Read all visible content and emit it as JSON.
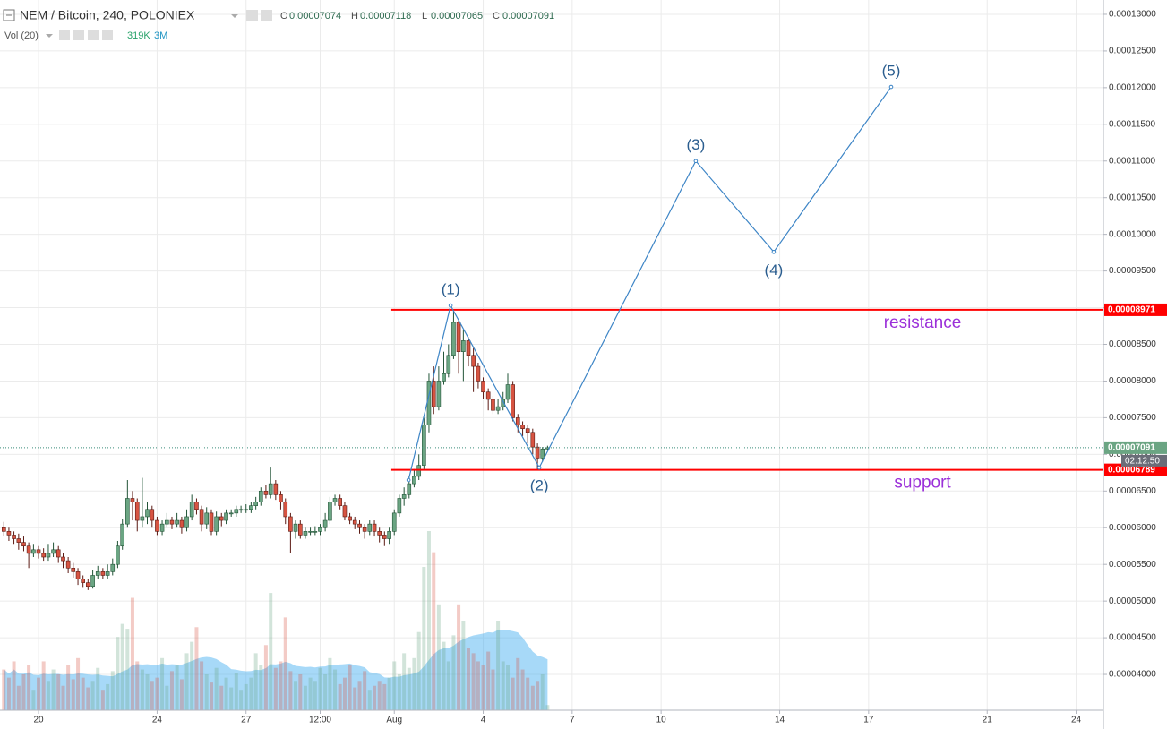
{
  "chart_data": {
    "type": "candlestick",
    "title": "NEM / Bitcoin, 240, POLONIEX",
    "ohlc_labels": [
      "O",
      "H",
      "L",
      "C"
    ],
    "volume_legend": {
      "name": "Vol (20)",
      "value_label": "319K",
      "ma_label": "3M"
    },
    "countdown": "02:12:50",
    "x": [
      18.83,
      19,
      19.17,
      19.33,
      19.5,
      19.67,
      19.83,
      20,
      20.17,
      20.33,
      20.5,
      20.67,
      20.83,
      21,
      21.17,
      21.33,
      21.5,
      21.67,
      21.83,
      22,
      22.17,
      22.33,
      22.5,
      22.67,
      22.83,
      23,
      23.17,
      23.33,
      23.5,
      23.67,
      23.83,
      24,
      24.17,
      24.33,
      24.5,
      24.67,
      24.83,
      25,
      25.17,
      25.33,
      25.5,
      25.67,
      25.83,
      26,
      26.17,
      26.33,
      26.5,
      26.67,
      26.83,
      27,
      27.17,
      27.33,
      27.5,
      27.67,
      27.83,
      28,
      28.17,
      28.33,
      28.5,
      28.67,
      28.83,
      29,
      29.17,
      29.33,
      29.5,
      29.67,
      29.83,
      30,
      30.17,
      30.33,
      30.5,
      30.67,
      30.83,
      31,
      31.17,
      31.33,
      31.5,
      31.67,
      31.83,
      32,
      32.17,
      32.33,
      32.5,
      32.67,
      32.83,
      33,
      33.17,
      33.33,
      33.5,
      33.67,
      33.83,
      34,
      34.17,
      34.33,
      34.5,
      34.67,
      34.83,
      35,
      35.17,
      35.33,
      35.5,
      35.67,
      35.83,
      36,
      36.17,
      36.33,
      36.5,
      36.67,
      36.83,
      37,
      37.17
    ],
    "open": [
      6e-05,
      5.95e-05,
      5.9e-05,
      5.85e-05,
      5.8e-05,
      5.75e-05,
      5.65e-05,
      5.7e-05,
      5.65e-05,
      5.6e-05,
      5.65e-05,
      5.7e-05,
      5.6e-05,
      5.55e-05,
      5.45e-05,
      5.4e-05,
      5.3e-05,
      5.25e-05,
      5.2e-05,
      5.35e-05,
      5.4e-05,
      5.35e-05,
      5.4e-05,
      5.5e-05,
      5.75e-05,
      6.05e-05,
      6.4e-05,
      6.35e-05,
      6.1e-05,
      6.15e-05,
      6.25e-05,
      6.1e-05,
      5.95e-05,
      6.05e-05,
      6.1e-05,
      6.05e-05,
      6.1e-05,
      6e-05,
      6.15e-05,
      6.35e-05,
      6.25e-05,
      6.05e-05,
      6.2e-05,
      5.95e-05,
      6.15e-05,
      6.1e-05,
      6.2e-05,
      6.2e-05,
      6.25e-05,
      6.25e-05,
      6.25e-05,
      6.3e-05,
      6.35e-05,
      6.5e-05,
      6.45e-05,
      6.6e-05,
      6.45e-05,
      6.35e-05,
      6.15e-05,
      5.95e-05,
      6.05e-05,
      5.9e-05,
      5.95e-05,
      5.95e-05,
      5.95e-05,
      6e-05,
      6.1e-05,
      6.35e-05,
      6.4e-05,
      6.3e-05,
      6.15e-05,
      6.1e-05,
      6.05e-05,
      6e-05,
      5.95e-05,
      6.05e-05,
      5.95e-05,
      5.9e-05,
      5.85e-05,
      5.95e-05,
      6.2e-05,
      6.4e-05,
      6.45e-05,
      6.6e-05,
      6.7e-05,
      6.85e-05,
      7.4e-05,
      8e-05,
      7.65e-05,
      8e-05,
      8.1e-05,
      8.35e-05,
      8.8e-05,
      8.4e-05,
      8.55e-05,
      8.35e-05,
      8.2e-05,
      8e-05,
      7.85e-05,
      7.75e-05,
      7.6e-05,
      7.65e-05,
      7.75e-05,
      7.95e-05,
      7.5e-05,
      7.4e-05,
      7.35e-05,
      7.3e-05,
      7.1e-05,
      6.95e-05,
      7.074e-05
    ],
    "high": [
      6.08e-05,
      6e-05,
      5.95e-05,
      5.92e-05,
      5.88e-05,
      5.8e-05,
      5.78e-05,
      5.75e-05,
      5.72e-05,
      5.78e-05,
      5.8e-05,
      5.75e-05,
      5.65e-05,
      5.6e-05,
      5.52e-05,
      5.45e-05,
      5.35e-05,
      5.3e-05,
      5.42e-05,
      5.48e-05,
      5.45e-05,
      5.5e-05,
      5.58e-05,
      5.82e-05,
      6.12e-05,
      6.65e-05,
      6.5e-05,
      6.4e-05,
      6.68e-05,
      6.35e-05,
      6.3e-05,
      6.15e-05,
      6.1e-05,
      6.2e-05,
      6.15e-05,
      6.2e-05,
      6.15e-05,
      6.25e-05,
      6.45e-05,
      6.4e-05,
      6.3e-05,
      6.28e-05,
      6.25e-05,
      6.22e-05,
      6.2e-05,
      6.25e-05,
      6.25e-05,
      6.3e-05,
      6.3e-05,
      6.32e-05,
      6.35e-05,
      6.42e-05,
      6.55e-05,
      6.58e-05,
      6.82e-05,
      6.65e-05,
      6.5e-05,
      6.4e-05,
      6.2e-05,
      6.1e-05,
      6.1e-05,
      6e-05,
      6e-05,
      6.02e-05,
      6.05e-05,
      6.2e-05,
      6.42e-05,
      6.45e-05,
      6.45e-05,
      6.35e-05,
      6.2e-05,
      6.15e-05,
      6.1e-05,
      6.05e-05,
      6.1e-05,
      6.1e-05,
      6e-05,
      5.95e-05,
      6e-05,
      6.25e-05,
      6.45e-05,
      6.55e-05,
      6.7e-05,
      6.8e-05,
      7e-05,
      7.5e-05,
      8.1e-05,
      8.2e-05,
      8.2e-05,
      8.4e-05,
      8.5e-05,
      8.971e-05,
      8.85e-05,
      8.7e-05,
      8.6e-05,
      8.45e-05,
      8.25e-05,
      8.05e-05,
      7.9e-05,
      7.8e-05,
      7.75e-05,
      7.85e-05,
      8.1e-05,
      8e-05,
      7.55e-05,
      7.45e-05,
      7.4e-05,
      7.35e-05,
      7.15e-05,
      7.1e-05,
      7.118e-05
    ],
    "low": [
      5.88e-05,
      5.82e-05,
      5.78e-05,
      5.7e-05,
      5.68e-05,
      5.45e-05,
      5.6e-05,
      5.58e-05,
      5.55e-05,
      5.55e-05,
      5.6e-05,
      5.52e-05,
      5.45e-05,
      5.38e-05,
      5.32e-05,
      5.22e-05,
      5.18e-05,
      5.15e-05,
      5.17e-05,
      5.3e-05,
      5.3e-05,
      5.3e-05,
      5.35e-05,
      5.45e-05,
      5.7e-05,
      6e-05,
      6.1e-05,
      5.95e-05,
      6e-05,
      6.05e-05,
      6e-05,
      5.9e-05,
      5.9e-05,
      6e-05,
      5.98e-05,
      6e-05,
      5.92e-05,
      5.95e-05,
      6.1e-05,
      6.18e-05,
      5.95e-05,
      5.98e-05,
      5.9e-05,
      5.9e-05,
      6.02e-05,
      6.05e-05,
      6.15e-05,
      6.15e-05,
      6.2e-05,
      6.2e-05,
      6.2e-05,
      6.25e-05,
      6.3e-05,
      6.4e-05,
      6.4e-05,
      6.38e-05,
      6.25e-05,
      6.05e-05,
      5.65e-05,
      5.85e-05,
      5.85e-05,
      5.85e-05,
      5.9e-05,
      5.9e-05,
      5.9e-05,
      5.95e-05,
      6.05e-05,
      6.3e-05,
      6.25e-05,
      6.1e-05,
      6.05e-05,
      5.98e-05,
      5.92e-05,
      5.85e-05,
      5.9e-05,
      5.88e-05,
      5.8e-05,
      5.75e-05,
      5.78e-05,
      5.9e-05,
      6.15e-05,
      6.3e-05,
      6.4e-05,
      6.55e-05,
      6.65e-05,
      6.8e-05,
      7.3e-05,
      7.55e-05,
      7.6e-05,
      7.95e-05,
      8.05e-05,
      8.3e-05,
      8.1e-05,
      8e-05,
      8.2e-05,
      7.85e-05,
      7.9e-05,
      7.75e-05,
      7.6e-05,
      7.55e-05,
      7.55e-05,
      7.6e-05,
      7.7e-05,
      7.45e-05,
      7.3e-05,
      7.25e-05,
      7.15e-05,
      7e-05,
      6.789e-05,
      6.9e-05,
      7.065e-05
    ],
    "close": [
      5.95e-05,
      5.9e-05,
      5.85e-05,
      5.8e-05,
      5.75e-05,
      5.65e-05,
      5.7e-05,
      5.65e-05,
      5.6e-05,
      5.65e-05,
      5.7e-05,
      5.6e-05,
      5.55e-05,
      5.45e-05,
      5.4e-05,
      5.3e-05,
      5.25e-05,
      5.2e-05,
      5.35e-05,
      5.4e-05,
      5.35e-05,
      5.4e-05,
      5.5e-05,
      5.75e-05,
      6.05e-05,
      6.4e-05,
      6.35e-05,
      6.1e-05,
      6.15e-05,
      6.25e-05,
      6.1e-05,
      5.95e-05,
      6.05e-05,
      6.1e-05,
      6.05e-05,
      6.1e-05,
      6e-05,
      6.15e-05,
      6.35e-05,
      6.25e-05,
      6.05e-05,
      6.2e-05,
      5.95e-05,
      6.15e-05,
      6.1e-05,
      6.2e-05,
      6.2e-05,
      6.25e-05,
      6.25e-05,
      6.25e-05,
      6.3e-05,
      6.35e-05,
      6.5e-05,
      6.45e-05,
      6.6e-05,
      6.45e-05,
      6.35e-05,
      6.15e-05,
      5.95e-05,
      6.05e-05,
      5.9e-05,
      5.95e-05,
      5.95e-05,
      5.95e-05,
      6e-05,
      6.1e-05,
      6.35e-05,
      6.4e-05,
      6.3e-05,
      6.15e-05,
      6.1e-05,
      6.05e-05,
      6e-05,
      5.95e-05,
      6.05e-05,
      5.95e-05,
      5.9e-05,
      5.85e-05,
      5.95e-05,
      6.2e-05,
      6.4e-05,
      6.45e-05,
      6.6e-05,
      6.7e-05,
      6.85e-05,
      7.4e-05,
      8e-05,
      7.65e-05,
      8e-05,
      8.1e-05,
      8.35e-05,
      8.8e-05,
      8.4e-05,
      8.55e-05,
      8.35e-05,
      8.2e-05,
      8e-05,
      7.85e-05,
      7.75e-05,
      7.6e-05,
      7.65e-05,
      7.75e-05,
      7.95e-05,
      7.5e-05,
      7.4e-05,
      7.35e-05,
      7.3e-05,
      7.1e-05,
      6.95e-05,
      7.074e-05,
      7.091e-05
    ],
    "volume": [
      2500000.0,
      2000000.0,
      3000000.0,
      1500000.0,
      2200000.0,
      2800000.0,
      1200000.0,
      2000000.0,
      3000000.0,
      1800000.0,
      2500000.0,
      2200000.0,
      1500000.0,
      2800000.0,
      1900000.0,
      3200000.0,
      2000000.0,
      1400000.0,
      1800000.0,
      2600000.0,
      1200000.0,
      1600000.0,
      2400000.0,
      4500000.0,
      5300000.0,
      5000000.0,
      6900000.0,
      3000000.0,
      2500000.0,
      2200000.0,
      1800000.0,
      2000000.0,
      3200000.0,
      1500000.0,
      2400000.0,
      2800000.0,
      1900000.0,
      3500000.0,
      4200000.0,
      5100000.0,
      3000000.0,
      2200000.0,
      1700000.0,
      2600000.0,
      1500000.0,
      2000000.0,
      1400000.0,
      2300000.0,
      1200000.0,
      1600000.0,
      2000000.0,
      3500000.0,
      2800000.0,
      4000000.0,
      7200000.0,
      2600000.0,
      3000000.0,
      5700000.0,
      2400000.0,
      1800000.0,
      2200000.0,
      1500000.0,
      2000000.0,
      1800000.0,
      2600000.0,
      2200000.0,
      3200000.0,
      2500000.0,
      1600000.0,
      2000000.0,
      2800000.0,
      1400000.0,
      1800000.0,
      2400000.0,
      1200000.0,
      1500000.0,
      1800000.0,
      1600000.0,
      2000000.0,
      3000000.0,
      2200000.0,
      3500000.0,
      2600000.0,
      3200000.0,
      4800000.0,
      8800000.0,
      11000000.0,
      9700000.0,
      6500000.0,
      4200000.0,
      3000000.0,
      4600000.0,
      6500000.0,
      5500000.0,
      3800000.0,
      3500000.0,
      3000000.0,
      2800000.0,
      3600000.0,
      2500000.0,
      5500000.0,
      3000000.0,
      2800000.0,
      2000000.0,
      3200000.0,
      2500000.0,
      2000000.0,
      1500000.0,
      1800000.0,
      2200000.0,
      319000
    ],
    "ma_period": 20,
    "xlim": [
      18.7,
      55.92
    ],
    "ylim": [
      3.512e-05,
      0.00013195
    ],
    "xticks": [
      {
        "value": 20,
        "label": "20"
      },
      {
        "value": 24,
        "label": "24"
      },
      {
        "value": 27,
        "label": "27"
      },
      {
        "value": 29.5,
        "label": "12:00"
      },
      {
        "value": 32,
        "label": "Aug"
      },
      {
        "value": 35,
        "label": "4"
      },
      {
        "value": 38,
        "label": "7"
      },
      {
        "value": 41,
        "label": "10"
      },
      {
        "value": 45,
        "label": "14"
      },
      {
        "value": 48,
        "label": "17"
      },
      {
        "value": 52,
        "label": "21"
      },
      {
        "value": 55,
        "label": "24"
      }
    ],
    "yticks": [
      {
        "value": 4e-05,
        "label": "0.00004000"
      },
      {
        "value": 4.5e-05,
        "label": "0.00004500"
      },
      {
        "value": 5e-05,
        "label": "0.00005000"
      },
      {
        "value": 5.5e-05,
        "label": "0.00005500"
      },
      {
        "value": 6e-05,
        "label": "0.00006000"
      },
      {
        "value": 6.5e-05,
        "label": "0.00006500"
      },
      {
        "value": 7e-05,
        "label": "0.00007000"
      },
      {
        "value": 7.5e-05,
        "label": "0.00007500"
      },
      {
        "value": 8e-05,
        "label": "0.00008000"
      },
      {
        "value": 8.5e-05,
        "label": "0.00008500"
      },
      {
        "value": 9e-05,
        "label": "0.00009000"
      },
      {
        "value": 9.5e-05,
        "label": "0.00009500"
      },
      {
        "value": 0.0001,
        "label": "0.00010000"
      },
      {
        "value": 0.000105,
        "label": "0.00010500"
      },
      {
        "value": 0.00011,
        "label": "0.00011000"
      },
      {
        "value": 0.000115,
        "label": "0.00011500"
      },
      {
        "value": 0.00012,
        "label": "0.00012000"
      },
      {
        "value": 0.000125,
        "label": "0.00012500"
      },
      {
        "value": 0.00013,
        "label": "0.00013000"
      }
    ],
    "grid": true,
    "up_color": "#6ba583",
    "down_color": "#d75442",
    "up_wick": "#225437",
    "down_wick": "#5b1a13",
    "volume_up_color": "rgba(107,165,131,0.3)",
    "volume_down_color": "rgba(215,84,66,0.3)",
    "volume_ma_color": "rgba(60,170,240,0.45)",
    "levels": [
      {
        "label": "resistance",
        "value": 8.971e-05,
        "x_start": 31.9,
        "color": "#ff0000"
      },
      {
        "label": "support",
        "value": 6.789e-05,
        "x_start": 31.9,
        "color": "#ff0000"
      }
    ],
    "wave": {
      "x": [
        32.48,
        33.9,
        36.89,
        42.17,
        44.8,
        48.76
      ],
      "y": [
        6.65e-05,
        9.03e-05,
        6.82e-05,
        0.00011,
        9.76e-05,
        0.0001201
      ],
      "labels": [
        null,
        "(1)",
        "(2)",
        "(3)",
        "(4)",
        "(5)"
      ],
      "color": "#3d85c6"
    }
  }
}
